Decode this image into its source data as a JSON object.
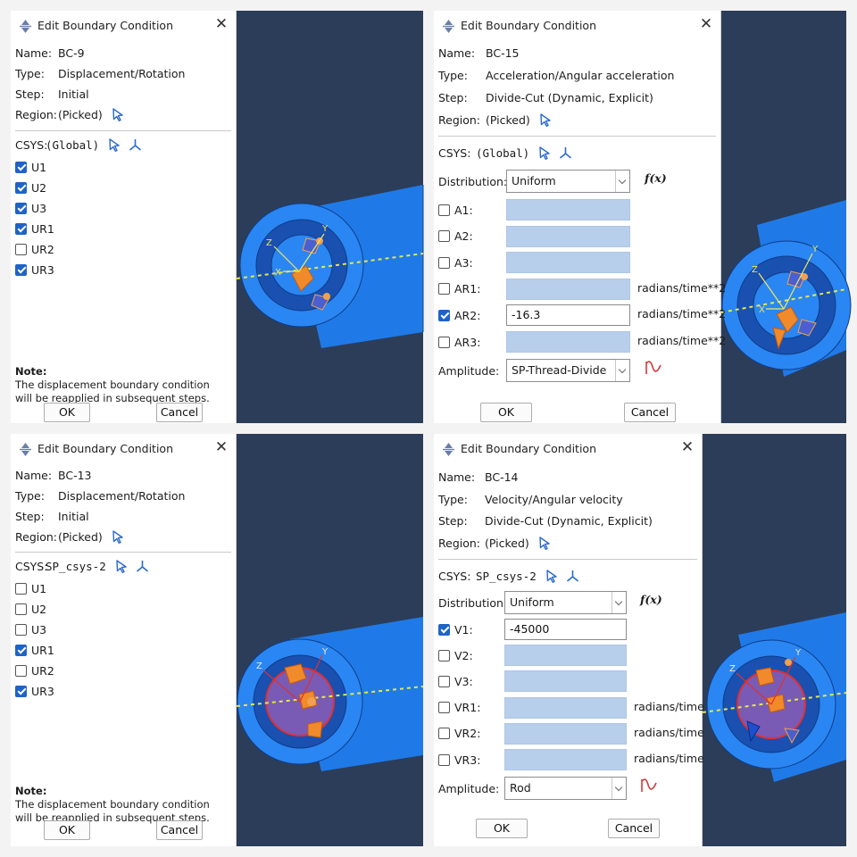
{
  "q1": {
    "title": "Edit Boundary Condition",
    "name_label": "Name:",
    "name": "BC-9",
    "type_label": "Type:",
    "type": "Displacement/Rotation",
    "step_label": "Step:",
    "step": "Initial",
    "region_label": "Region:",
    "region": "(Picked)",
    "csys_label": "CSYS:",
    "csys": "(Global)",
    "dofs": [
      {
        "label": "U1",
        "checked": true
      },
      {
        "label": "U2",
        "checked": true
      },
      {
        "label": "U3",
        "checked": true
      },
      {
        "label": "UR1",
        "checked": true
      },
      {
        "label": "UR2",
        "checked": false
      },
      {
        "label": "UR3",
        "checked": true
      }
    ],
    "note_label": "Note:",
    "note_line1": "The displacement boundary condition",
    "note_line2": "will be reapplied in subsequent steps.",
    "ok": "OK",
    "cancel": "Cancel"
  },
  "q2": {
    "title": "Edit Boundary Condition",
    "name_label": "Name:",
    "name": "BC-15",
    "type_label": "Type:",
    "type": "Acceleration/Angular acceleration",
    "step_label": "Step:",
    "step": "Divide-Cut (Dynamic, Explicit)",
    "region_label": "Region:",
    "region": "(Picked)",
    "csys_label": "CSYS:",
    "csys": "(Global)",
    "distribution_label": "Distribution:",
    "distribution": "Uniform",
    "fx": "f(x)",
    "dofs": [
      {
        "label": "A1:",
        "checked": false,
        "value": "",
        "unit": ""
      },
      {
        "label": "A2:",
        "checked": false,
        "value": "",
        "unit": ""
      },
      {
        "label": "A3:",
        "checked": false,
        "value": "",
        "unit": ""
      },
      {
        "label": "AR1:",
        "checked": false,
        "value": "",
        "unit": "radians/time**2"
      },
      {
        "label": "AR2:",
        "checked": true,
        "value": "-16.3",
        "unit": "radians/time**2"
      },
      {
        "label": "AR3:",
        "checked": false,
        "value": "",
        "unit": "radians/time**2"
      }
    ],
    "amplitude_label": "Amplitude:",
    "amplitude": "SP-Thread-Divide",
    "ok": "OK",
    "cancel": "Cancel"
  },
  "q3": {
    "title": "Edit Boundary Condition",
    "name_label": "Name:",
    "name": "BC-13",
    "type_label": "Type:",
    "type": "Displacement/Rotation",
    "step_label": "Step:",
    "step": "Initial",
    "region_label": "Region:",
    "region": "(Picked)",
    "csys_label": "CSYS:",
    "csys": "SP_csys-2",
    "dofs": [
      {
        "label": "U1",
        "checked": false
      },
      {
        "label": "U2",
        "checked": false
      },
      {
        "label": "U3",
        "checked": false
      },
      {
        "label": "UR1",
        "checked": true
      },
      {
        "label": "UR2",
        "checked": false
      },
      {
        "label": "UR3",
        "checked": true
      }
    ],
    "note_label": "Note:",
    "note_line1": "The displacement boundary condition",
    "note_line2": "will be reapplied in subsequent steps.",
    "ok": "OK",
    "cancel": "Cancel"
  },
  "q4": {
    "title": "Edit Boundary Condition",
    "name_label": "Name:",
    "name": "BC-14",
    "type_label": "Type:",
    "type": "Velocity/Angular velocity",
    "step_label": "Step:",
    "step": "Divide-Cut (Dynamic, Explicit)",
    "region_label": "Region:",
    "region": "(Picked)",
    "csys_label": "CSYS:",
    "csys": "SP_csys-2",
    "distribution_label": "Distribution:",
    "distribution": "Uniform",
    "fx": "f(x)",
    "dofs": [
      {
        "label": "V1:",
        "checked": true,
        "value": "-45000",
        "unit": ""
      },
      {
        "label": "V2:",
        "checked": false,
        "value": "",
        "unit": ""
      },
      {
        "label": "V3:",
        "checked": false,
        "value": "",
        "unit": ""
      },
      {
        "label": "VR1:",
        "checked": false,
        "value": "",
        "unit": "radians/time"
      },
      {
        "label": "VR2:",
        "checked": false,
        "value": "",
        "unit": "radians/time"
      },
      {
        "label": "VR3:",
        "checked": false,
        "value": "",
        "unit": "radians/time"
      }
    ],
    "amplitude_label": "Amplitude:",
    "amplitude": "Rod",
    "ok": "OK",
    "cancel": "Cancel"
  },
  "viewport_labels": {
    "x": "X",
    "y": "Y",
    "z": "Z"
  },
  "colors": {
    "viewport_bg": "#2c3d59",
    "part_blue": "#1f7ae8",
    "dark_ring": "#1a50b0",
    "checkbox_blue": "#1f63c7",
    "field_blue": "#b7cfeb",
    "csys_pick_blue": "#2a6ad0",
    "axis_yellow": "#e7e84a",
    "amplitude_red": "#d23b3b",
    "marker_orange": "#f08a2a"
  }
}
